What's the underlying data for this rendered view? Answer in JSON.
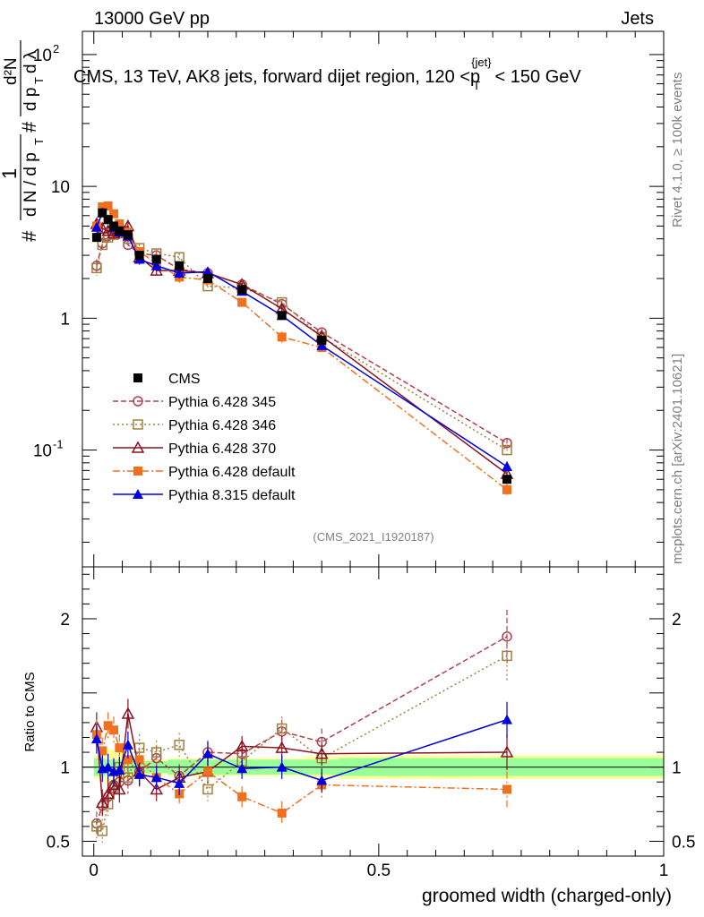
{
  "header": {
    "left": "13000 GeV pp",
    "right": "Jets"
  },
  "side_labels": {
    "top": "Rivet 4.1.0, ≥ 100k events",
    "bottom": "mcplots.cern.ch [arXiv:2401.10621]"
  },
  "watermark": "(CMS_2021_I1920187)",
  "chart_data": {
    "type": "line",
    "title": "CMS, 13 TeV, AK8 jets, forward dijet region, 120 <p_T^{jet}< 150 GeV",
    "xlabel": "groomed width (charged-only)",
    "ylabel_main": "1/dN/dp_T · d²N/(dp_T dλ)",
    "ylabel_ratio": "Ratio to CMS",
    "xlim": [
      -0.02,
      1.0
    ],
    "ylim_main": [
      0.013,
      150
    ],
    "ylim_ratio": [
      0.4,
      2.35
    ],
    "x_ticks": [
      {
        "v": 0,
        "label": "0"
      },
      {
        "v": 0.5,
        "label": "0.5"
      },
      {
        "v": 1,
        "label": "1"
      }
    ],
    "y_ticks_main": [
      {
        "v": 0.1,
        "label": "10^-1"
      },
      {
        "v": 1,
        "label": "1"
      },
      {
        "v": 10,
        "label": "10"
      },
      {
        "v": 100,
        "label": "10^2"
      }
    ],
    "y_ticks_ratio": [
      {
        "v": 0.5,
        "label": "0.5"
      },
      {
        "v": 1,
        "label": "1"
      },
      {
        "v": 2,
        "label": "2"
      }
    ],
    "x": [
      0.005,
      0.015,
      0.025,
      0.035,
      0.045,
      0.06,
      0.08,
      0.11,
      0.15,
      0.2,
      0.26,
      0.33,
      0.4,
      0.725
    ],
    "x_edges": [
      0,
      0.01,
      0.02,
      0.03,
      0.04,
      0.05,
      0.07,
      0.09,
      0.13,
      0.17,
      0.23,
      0.29,
      0.37,
      0.43,
      1.0
    ],
    "ratio_band_inner": [
      0.06,
      0.06,
      0.05,
      0.05,
      0.05,
      0.05,
      0.04,
      0.04,
      0.05,
      0.05,
      0.05,
      0.05,
      0.05,
      0.06
    ],
    "ratio_band_outer": [
      0.08,
      0.1,
      0.12,
      0.12,
      0.1,
      0.08,
      0.06,
      0.05,
      0.06,
      0.06,
      0.06,
      0.06,
      0.07,
      0.08
    ],
    "series": [
      {
        "name": "CMS",
        "color": "#000000",
        "marker": "square-filled",
        "dash": "",
        "values": [
          4.1,
          6.3,
          5.6,
          5.0,
          4.6,
          4.3,
          3.0,
          2.8,
          2.5,
          2.0,
          1.65,
          1.05,
          0.68,
          0.06
        ],
        "err": [
          0.2,
          0.3,
          0.3,
          0.25,
          0.2,
          0.2,
          0.15,
          0.12,
          0.1,
          0.1,
          0.08,
          0.05,
          0.04,
          0.004
        ],
        "ratio": [],
        "ratio_err": []
      },
      {
        "name": "Pythia 6.428 345",
        "color": "#b04050",
        "marker": "circle-open",
        "dash": "6,3",
        "values": [
          2.5,
          3.7,
          4.2,
          4.5,
          4.4,
          3.6,
          3.1,
          3.0,
          2.35,
          2.2,
          1.8,
          1.28,
          0.78,
          0.113
        ],
        "err": [
          0.3,
          0.4,
          0.4,
          0.4,
          0.4,
          0.3,
          0.25,
          0.2,
          0.2,
          0.15,
          0.1,
          0.08,
          0.05,
          0.01
        ],
        "ratio": [
          0.62,
          0.74,
          0.8,
          0.88,
          0.9,
          0.91,
          0.97,
          1.06,
          0.94,
          1.1,
          1.09,
          1.24,
          1.17,
          1.88
        ],
        "ratio_err": [
          0.08,
          0.08,
          0.08,
          0.08,
          0.09,
          0.09,
          0.09,
          0.08,
          0.08,
          0.08,
          0.07,
          0.08,
          0.09,
          0.18
        ]
      },
      {
        "name": "Pythia 6.428 346",
        "color": "#a08040",
        "marker": "square-open",
        "dash": "2,3",
        "values": [
          2.4,
          3.6,
          4.1,
          4.3,
          4.6,
          4.0,
          3.4,
          3.1,
          2.9,
          1.75,
          1.7,
          1.32,
          0.72,
          0.1
        ],
        "err": [
          0.3,
          0.4,
          0.4,
          0.4,
          0.4,
          0.3,
          0.25,
          0.2,
          0.2,
          0.15,
          0.1,
          0.08,
          0.05,
          0.01
        ],
        "ratio": [
          0.6,
          0.57,
          0.75,
          0.86,
          1.0,
          0.93,
          1.13,
          1.1,
          1.15,
          0.85,
          1.04,
          1.26,
          1.06,
          1.75
        ],
        "ratio_err": [
          0.08,
          0.08,
          0.08,
          0.08,
          0.09,
          0.09,
          0.09,
          0.08,
          0.08,
          0.08,
          0.07,
          0.08,
          0.09,
          0.18
        ]
      },
      {
        "name": "Pythia 6.428 370",
        "color": "#8a1420",
        "marker": "triangle-open",
        "dash": "",
        "values": [
          5.2,
          4.8,
          4.6,
          4.4,
          4.6,
          5.0,
          2.9,
          2.3,
          2.3,
          2.2,
          1.8,
          1.18,
          0.73,
          0.066
        ],
        "err": [
          0.4,
          0.4,
          0.4,
          0.4,
          0.4,
          0.4,
          0.25,
          0.2,
          0.2,
          0.15,
          0.1,
          0.08,
          0.05,
          0.006
        ],
        "ratio": [
          1.27,
          0.76,
          0.82,
          0.88,
          0.85,
          1.36,
          0.97,
          0.85,
          0.93,
          0.97,
          1.14,
          1.13,
          1.09,
          1.1
        ],
        "ratio_err": [
          0.1,
          0.09,
          0.09,
          0.09,
          0.09,
          0.1,
          0.09,
          0.08,
          0.08,
          0.08,
          0.07,
          0.08,
          0.08,
          0.12
        ]
      },
      {
        "name": "Pythia 6.428 default",
        "color": "#f07020",
        "marker": "square-filled",
        "dash": "8,3,2,3",
        "values": [
          5.0,
          7.0,
          7.1,
          6.2,
          5.2,
          4.5,
          3.2,
          2.6,
          2.05,
          1.95,
          1.32,
          0.72,
          0.6,
          0.05
        ],
        "err": [
          0.4,
          0.5,
          0.5,
          0.4,
          0.4,
          0.3,
          0.25,
          0.2,
          0.2,
          0.15,
          0.1,
          0.07,
          0.05,
          0.006
        ],
        "ratio": [
          1.22,
          1.11,
          1.28,
          1.25,
          1.13,
          1.05,
          1.05,
          0.93,
          0.82,
          0.97,
          0.8,
          0.69,
          0.88,
          0.85
        ],
        "ratio_err": [
          0.1,
          0.09,
          0.09,
          0.09,
          0.09,
          0.09,
          0.08,
          0.08,
          0.08,
          0.08,
          0.07,
          0.08,
          0.09,
          0.12
        ]
      },
      {
        "name": "Pythia 8.315 default",
        "color": "#0000dd",
        "marker": "triangle-filled",
        "dash": "",
        "values": [
          4.9,
          6.3,
          5.6,
          4.9,
          4.5,
          4.2,
          2.8,
          2.5,
          2.2,
          2.25,
          1.6,
          1.05,
          0.62,
          0.075
        ],
        "err": [
          0.4,
          0.4,
          0.4,
          0.4,
          0.4,
          0.3,
          0.25,
          0.2,
          0.2,
          0.15,
          0.1,
          0.07,
          0.05,
          0.007
        ],
        "ratio": [
          1.19,
          0.99,
          1.0,
          0.97,
          0.98,
          1.15,
          0.95,
          0.93,
          0.89,
          1.09,
          0.99,
          1.0,
          0.91,
          1.32
        ],
        "ratio_err": [
          0.1,
          0.09,
          0.09,
          0.09,
          0.09,
          0.09,
          0.08,
          0.08,
          0.08,
          0.08,
          0.07,
          0.08,
          0.08,
          0.12
        ]
      }
    ]
  }
}
